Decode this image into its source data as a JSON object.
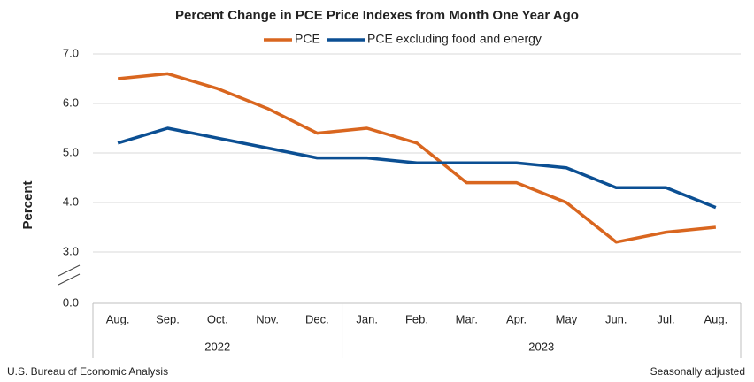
{
  "chart_data": {
    "type": "line",
    "title": "Percent Change in PCE Price Indexes from Month One Year Ago",
    "y_label": "Percent",
    "source": "U.S. Bureau of Economic Analysis",
    "note": "Seasonally adjusted",
    "groups": [
      {
        "name": "2022",
        "categories": [
          "Aug.",
          "Sep.",
          "Oct.",
          "Nov.",
          "Dec."
        ]
      },
      {
        "name": "2023",
        "categories": [
          "Jan.",
          "Feb.",
          "Mar.",
          "Apr.",
          "May",
          "Jun.",
          "Jul.",
          "Aug."
        ]
      }
    ],
    "series": [
      {
        "name": "PCE",
        "color": "#d9661f",
        "values": [
          6.5,
          6.6,
          6.3,
          5.9,
          5.4,
          5.5,
          5.2,
          4.4,
          4.4,
          4.0,
          3.2,
          3.4,
          3.5
        ]
      },
      {
        "name": "PCE excluding food and energy",
        "color": "#0b4f93",
        "values": [
          5.2,
          5.5,
          5.3,
          5.1,
          4.9,
          4.9,
          4.8,
          4.8,
          4.8,
          4.7,
          4.3,
          4.3,
          3.9
        ]
      }
    ],
    "ylim": [
      0,
      7
    ],
    "yticks": [
      {
        "value": 0,
        "label": "0.0"
      },
      {
        "value": 3,
        "label": "3.0"
      },
      {
        "value": 4,
        "label": "4.0"
      },
      {
        "value": 5,
        "label": "5.0"
      },
      {
        "value": 6,
        "label": "6.0"
      },
      {
        "value": 7,
        "label": "7.0"
      }
    ],
    "axis_break": true,
    "grid": true,
    "legend": "top"
  }
}
